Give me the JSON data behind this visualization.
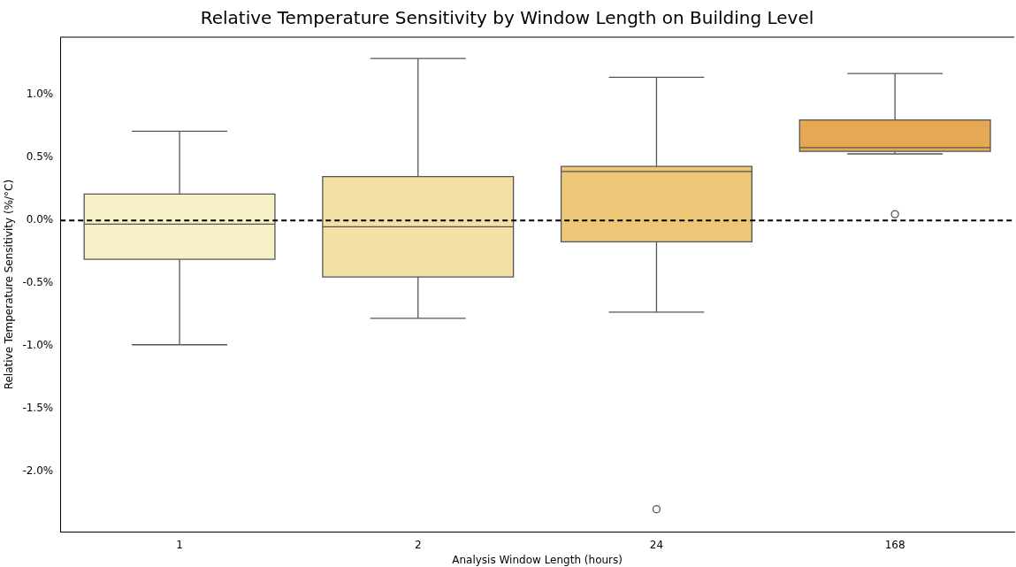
{
  "chart_data": {
    "type": "box",
    "title": "Relative Temperature Sensitivity by Window Length on Building Level",
    "xlabel": "Analysis Window Length (hours)",
    "ylabel": "Relative Temperature Sensitivity (%/°C)",
    "categories": [
      "1",
      "2",
      "24",
      "168"
    ],
    "colors": [
      "#f7f1c8",
      "#f3e0a6",
      "#ebc777",
      "#e6a853"
    ],
    "boxes": [
      {
        "low": -0.99,
        "q1": -0.31,
        "median": -0.03,
        "q3": 0.21,
        "high": 0.71
      },
      {
        "low": -0.78,
        "q1": -0.45,
        "median": -0.05,
        "q3": 0.35,
        "high": 1.29
      },
      {
        "low": -0.73,
        "q1": -0.17,
        "median": 0.39,
        "q3": 0.43,
        "high": 1.14,
        "outliers": [
          -2.3
        ]
      },
      {
        "low": 0.53,
        "q1": 0.55,
        "median": 0.58,
        "q3": 0.8,
        "high": 1.17,
        "outliers": [
          0.05
        ]
      }
    ],
    "ylim": [
      -2.48,
      1.46
    ],
    "yticks": [
      {
        "value": -2.0,
        "label": "-2.0%"
      },
      {
        "value": -1.5,
        "label": "-1.5%"
      },
      {
        "value": -1.0,
        "label": "-1.0%"
      },
      {
        "value": -0.5,
        "label": "-0.5%"
      },
      {
        "value": 0.0,
        "label": "0.0%"
      },
      {
        "value": 0.5,
        "label": "0.5%"
      },
      {
        "value": 1.0,
        "label": "1.0%"
      }
    ],
    "ref_lines": [
      {
        "axis": "y",
        "value": 0,
        "line_style": "dashed",
        "color": "#000000"
      }
    ],
    "grid": false,
    "legend": false
  }
}
